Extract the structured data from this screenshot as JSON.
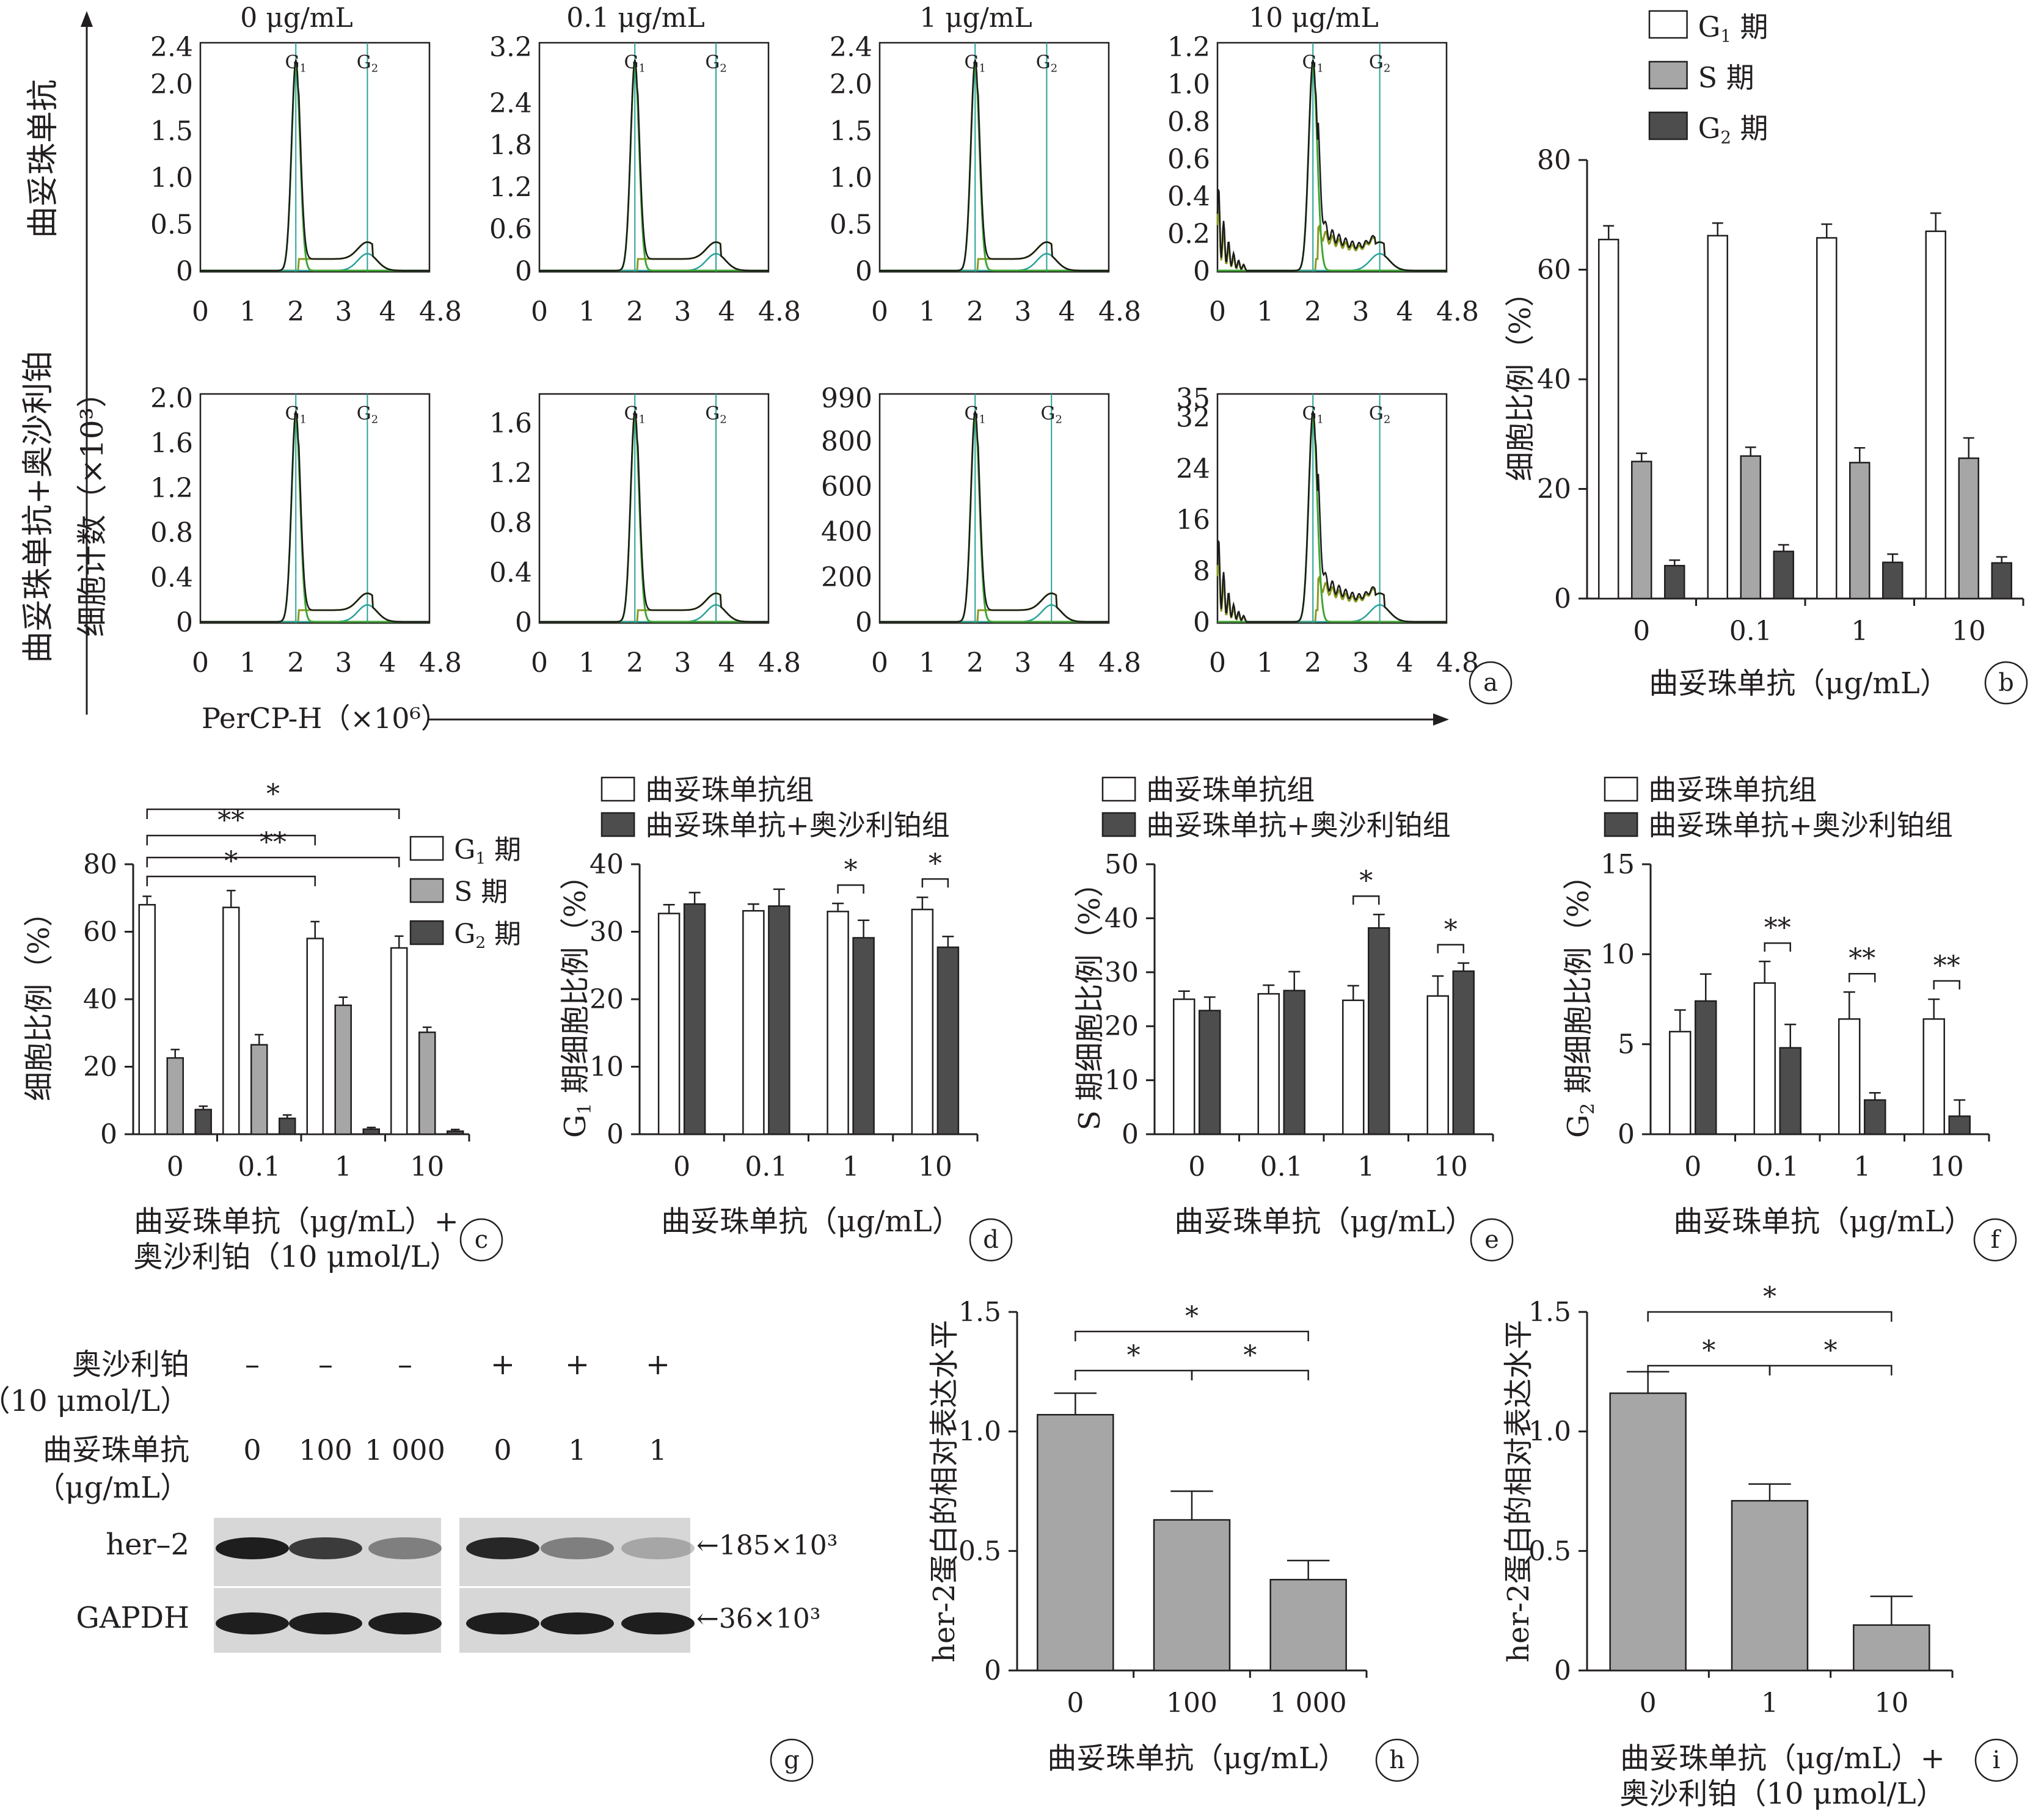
{
  "colors": {
    "g1_bar": "#ffffff",
    "s_bar": "#a6a6a6",
    "g2_bar": "#4d4d4d",
    "single_bar": "#a6a6a6",
    "trastuzumab_bar": "#ffffff",
    "combo_bar": "#4d4d4d",
    "hist_dark": "#1b1b1b",
    "hist_green": "#3fa535",
    "hist_olive": "#8a9a1e",
    "hist_line": "#2aa198",
    "axis": "#231f20"
  },
  "panel_labels": [
    "a",
    "b",
    "c",
    "d",
    "e",
    "f",
    "g",
    "h",
    "i"
  ],
  "panel_a": {
    "col_titles": [
      "0 μg/mL",
      "0.1 μg/mL",
      "1 μg/mL",
      "10 μg/mL"
    ],
    "row_labels": [
      "曲妥珠单抗",
      "曲妥珠单抗+奥沙利铂"
    ],
    "ylabel": "细胞计数（×10³）",
    "xlabel": "PerCP-H（×10⁶）",
    "peak_labels": [
      "G1",
      "G2"
    ],
    "x_ticks": [
      "0",
      "1",
      "2",
      "3",
      "4",
      "4.8"
    ],
    "rows": [
      [
        {
          "y_ticks": [
            "0",
            "0.5",
            "1.0",
            "1.5",
            "2.0",
            "2.4"
          ],
          "ymax": 2.4,
          "g2_pos": 3.5,
          "noise": false
        },
        {
          "y_ticks": [
            "0",
            "0.6",
            "1.2",
            "1.8",
            "2.4",
            "3.2"
          ],
          "ymax": 3.2,
          "g2_pos": 3.7,
          "noise": false
        },
        {
          "y_ticks": [
            "0",
            "0.5",
            "1.0",
            "1.5",
            "2.0",
            "2.4"
          ],
          "ymax": 2.4,
          "g2_pos": 3.5,
          "noise": false
        },
        {
          "y_ticks": [
            "0",
            "0.2",
            "0.4",
            "0.6",
            "0.8",
            "1.0",
            "1.2"
          ],
          "ymax": 1.2,
          "g2_pos": 3.4,
          "noise": true
        }
      ],
      [
        {
          "y_ticks": [
            "0",
            "0.4",
            "0.8",
            "1.2",
            "1.6",
            "2.0"
          ],
          "ymax": 2.0,
          "g2_pos": 3.5,
          "noise": false
        },
        {
          "y_ticks": [
            "0",
            "0.4",
            "0.8",
            "1.2",
            "1.6"
          ],
          "ymax": 1.8,
          "g2_pos": 3.7,
          "noise": false
        },
        {
          "y_ticks": [
            "0",
            "200",
            "400",
            "600",
            "800",
            "990"
          ],
          "ymax": 990,
          "g2_pos": 3.6,
          "noise": false
        },
        {
          "y_ticks": [
            "0",
            "8",
            "16",
            "24",
            "32",
            "35"
          ],
          "ymax": 35,
          "g2_pos": 3.4,
          "noise": true
        }
      ]
    ]
  },
  "chart_data": [
    {
      "id": "b",
      "type": "bar",
      "categories": [
        "0",
        "0.1",
        "1",
        "10"
      ],
      "series": [
        {
          "name": "G1 期",
          "values": [
            65.5,
            66.2,
            65.8,
            67.0
          ],
          "errors": [
            2.5,
            2.3,
            2.5,
            3.3
          ]
        },
        {
          "name": "S 期",
          "values": [
            25.0,
            26.0,
            24.8,
            25.6
          ],
          "errors": [
            1.5,
            1.6,
            2.7,
            3.7
          ]
        },
        {
          "name": "G2 期",
          "values": [
            6.0,
            8.6,
            6.6,
            6.5
          ],
          "errors": [
            1.0,
            1.2,
            1.5,
            1.1
          ]
        }
      ],
      "xlabel": "曲妥珠单抗（μg/mL）",
      "ylabel": "细胞比例（%）",
      "yticks": [
        "0",
        "20",
        "40",
        "60",
        "80"
      ],
      "ylim": [
        0,
        80
      ],
      "legend": "top"
    },
    {
      "id": "c",
      "type": "bar",
      "categories": [
        "0",
        "0.1",
        "1",
        "10"
      ],
      "series": [
        {
          "name": "G1 期",
          "values": [
            68.0,
            67.2,
            58.0,
            55.2
          ],
          "errors": [
            2.5,
            5.0,
            5.0,
            3.5
          ]
        },
        {
          "name": "S 期",
          "values": [
            22.6,
            26.5,
            38.2,
            30.2
          ],
          "errors": [
            2.5,
            3.0,
            2.4,
            1.5
          ]
        },
        {
          "name": "G2 期",
          "values": [
            7.3,
            4.7,
            1.5,
            0.9
          ],
          "errors": [
            1.0,
            1.0,
            0.5,
            0.5
          ]
        }
      ],
      "xlabel": "曲妥珠单抗（μg/mL）+",
      "xlabel2": "奥沙利铂（10 μmol/L）",
      "ylabel": "细胞比例（%）",
      "yticks": [
        "0",
        "20",
        "40",
        "60",
        "80"
      ],
      "ylim": [
        0,
        80
      ],
      "legend": "right",
      "significance": [
        {
          "from": 0,
          "to": 3,
          "label": "*"
        },
        {
          "from": 0,
          "to": 2,
          "label": "**"
        },
        {
          "from": 0,
          "to": 3,
          "label": "**"
        },
        {
          "from": 0,
          "to": 2,
          "label": "*"
        }
      ]
    },
    {
      "id": "d",
      "type": "bar",
      "categories": [
        "0",
        "0.1",
        "1",
        "10"
      ],
      "series": [
        {
          "name": "曲妥珠单抗组",
          "values": [
            32.7,
            33.1,
            33.0,
            33.3
          ],
          "errors": [
            1.3,
            1.0,
            1.2,
            1.8
          ]
        },
        {
          "name": "曲妥珠单抗+奥沙利铂组",
          "values": [
            34.1,
            33.8,
            29.1,
            27.7
          ],
          "errors": [
            1.7,
            2.5,
            2.6,
            1.6
          ]
        }
      ],
      "xlabel": "曲妥珠单抗（μg/mL）",
      "ylabel": "G1 期细胞比例（%）",
      "yticks": [
        "0",
        "10",
        "20",
        "30",
        "40"
      ],
      "ylim": [
        0,
        40
      ],
      "legend": "top",
      "significance": [
        {
          "category": 2,
          "label": "*"
        },
        {
          "category": 3,
          "label": "*"
        }
      ]
    },
    {
      "id": "e",
      "type": "bar",
      "categories": [
        "0",
        "0.1",
        "1",
        "10"
      ],
      "series": [
        {
          "name": "曲妥珠单抗组",
          "values": [
            25.0,
            26.0,
            24.8,
            25.6
          ],
          "errors": [
            1.5,
            1.6,
            2.7,
            3.7
          ]
        },
        {
          "name": "曲妥珠单抗+奥沙利铂组",
          "values": [
            22.9,
            26.6,
            38.2,
            30.2
          ],
          "errors": [
            2.5,
            3.5,
            2.5,
            1.5
          ]
        }
      ],
      "xlabel": "曲妥珠单抗（μg/mL）",
      "ylabel": "S 期细胞比例（%）",
      "yticks": [
        "0",
        "10",
        "20",
        "30",
        "40",
        "50"
      ],
      "ylim": [
        0,
        50
      ],
      "legend": "top",
      "significance": [
        {
          "category": 2,
          "label": "*"
        },
        {
          "category": 3,
          "label": "*"
        }
      ]
    },
    {
      "id": "f",
      "type": "bar",
      "categories": [
        "0",
        "0.1",
        "1",
        "10"
      ],
      "series": [
        {
          "name": "曲妥珠单抗组",
          "values": [
            5.7,
            8.4,
            6.4,
            6.4
          ],
          "errors": [
            1.2,
            1.2,
            1.5,
            1.1
          ]
        },
        {
          "name": "曲妥珠单抗+奥沙利铂组",
          "values": [
            7.4,
            4.8,
            1.9,
            1.0
          ],
          "errors": [
            1.5,
            1.3,
            0.4,
            0.9
          ]
        }
      ],
      "xlabel": "曲妥珠单抗（μg/mL）",
      "ylabel": "G2 期细胞比例（%）",
      "yticks": [
        "0",
        "5",
        "10",
        "15"
      ],
      "ylim": [
        0,
        15
      ],
      "legend": "top",
      "significance": [
        {
          "category": 1,
          "label": "**"
        },
        {
          "category": 2,
          "label": "**"
        },
        {
          "category": 3,
          "label": "**"
        }
      ]
    },
    {
      "id": "h",
      "type": "bar",
      "categories": [
        "0",
        "100",
        "1 000"
      ],
      "series": [
        {
          "values": [
            1.07,
            0.63,
            0.38
          ],
          "errors": [
            0.09,
            0.12,
            0.08
          ]
        }
      ],
      "xlabel": "曲妥珠单抗（μg/mL）",
      "ylabel": "her-2蛋白的相对表达水平",
      "yticks": [
        "0",
        "0.5",
        "1.0",
        "1.5"
      ],
      "ylim": [
        0,
        1.5
      ],
      "significance": [
        {
          "from": 0,
          "to": 2,
          "label": "*"
        },
        {
          "from": 0,
          "to": 1,
          "label": "*"
        },
        {
          "from": 1,
          "to": 2,
          "label": "*"
        }
      ]
    },
    {
      "id": "i",
      "type": "bar",
      "categories": [
        "0",
        "1",
        "10"
      ],
      "series": [
        {
          "values": [
            1.16,
            0.71,
            0.19
          ],
          "errors": [
            0.09,
            0.07,
            0.12
          ]
        }
      ],
      "xlabel": "曲妥珠单抗（μg/mL）+",
      "xlabel2": "奥沙利铂（10 μmol/L）",
      "ylabel": "her-2蛋白的相对表达水平",
      "yticks": [
        "0",
        "0.5",
        "1.0",
        "1.5"
      ],
      "ylim": [
        0,
        1.5
      ],
      "significance": [
        {
          "from": 0,
          "to": 2,
          "label": "*"
        },
        {
          "from": 0,
          "to": 1,
          "label": "*"
        },
        {
          "from": 1,
          "to": 2,
          "label": "*"
        }
      ]
    }
  ],
  "western_blot": {
    "row1_label": "奥沙利铂",
    "row1_sub": "（10 μmol/L）",
    "row1_signs": [
      "–",
      "–",
      "–",
      "+",
      "+",
      "+"
    ],
    "row2_label": "曲妥珠单抗",
    "row2_sub": "（μg/mL）",
    "row2_values": [
      "0",
      "100",
      "1 000",
      "0",
      "1",
      "1"
    ],
    "band_labels": [
      "her–2",
      "GAPDH"
    ],
    "markers": [
      "←185×10³",
      "←36×10³"
    ],
    "her2_intensity": [
      0.95,
      0.8,
      0.45,
      0.9,
      0.45,
      0.25
    ],
    "gapdh_intensity": [
      0.95,
      0.95,
      0.95,
      0.95,
      0.95,
      0.95
    ]
  }
}
